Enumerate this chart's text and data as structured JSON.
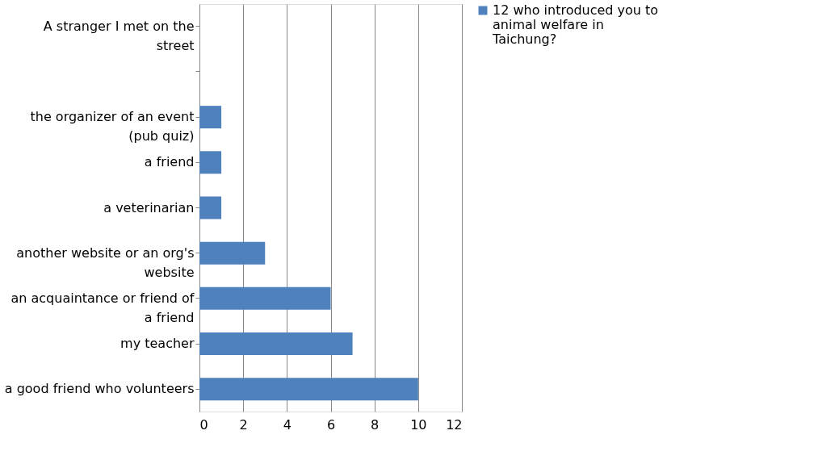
{
  "chart_data": {
    "type": "bar",
    "orientation": "horizontal",
    "categories": [
      "A stranger I met on the street",
      null,
      "the organizer of an event (pub quiz)",
      "a friend",
      "a veterinarian",
      "another website or an org's website",
      "an acquaintance or friend of a friend",
      "my teacher",
      "a good friend who volunteers"
    ],
    "series": [
      {
        "name": "12 who introduced you to animal welfare in Taichung?",
        "color": "#4f81bd",
        "values": [
          0,
          0,
          1,
          1,
          1,
          3,
          6,
          7,
          10
        ]
      }
    ],
    "xlim": [
      0,
      12
    ],
    "xticks": [
      0,
      2,
      4,
      6,
      8,
      10,
      12
    ],
    "grid": "x",
    "legend": "right"
  }
}
